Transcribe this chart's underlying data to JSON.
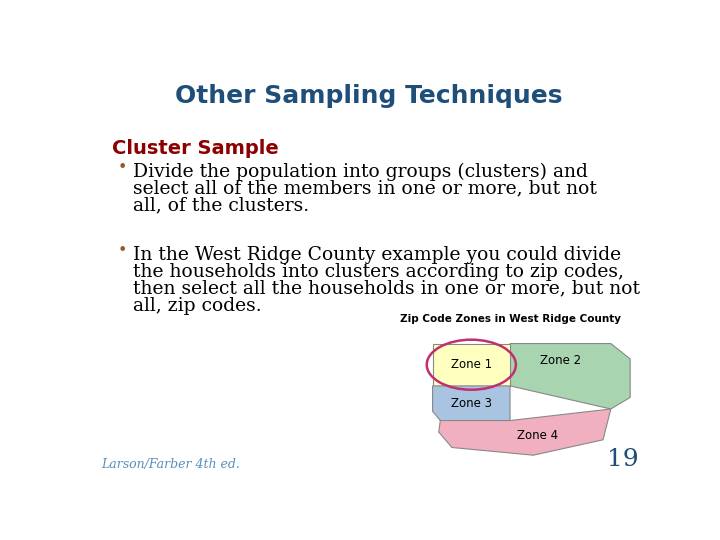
{
  "title": "Other Sampling Techniques",
  "title_color": "#1F4E79",
  "title_fontsize": 18,
  "subtitle": "Cluster Sample",
  "subtitle_color": "#8B0000",
  "subtitle_fontsize": 14,
  "bullet_color": "#A0522D",
  "body_fontsize": 13.5,
  "bullet1_line1": "Divide the population into groups (clusters) and",
  "bullet1_line2": "select all of the members in one or more, but not",
  "bullet1_line3": "all, of the clusters.",
  "bullet2_line1": "In the West Ridge County example you could divide",
  "bullet2_line2": "the households into clusters according to zip codes,",
  "bullet2_line3": "then select all the households in one or more, but not",
  "bullet2_line4": "all, zip codes.",
  "map_title": "Zip Code Zones in West Ridge County",
  "zone1_label": "Zone 1",
  "zone2_label": "Zone 2",
  "zone3_label": "Zone 3",
  "zone4_label": "Zone 4",
  "zone1_color": "#FFFFC0",
  "zone2_color": "#A8D4B0",
  "zone3_color": "#A8C4E0",
  "zone4_color": "#F0B0C0",
  "ellipse_color": "#C03070",
  "background_color": "#FFFFFF",
  "footer_text": "Larson/Farber 4th ed.",
  "page_number": "19",
  "footer_fontsize": 9,
  "page_fontsize": 18
}
